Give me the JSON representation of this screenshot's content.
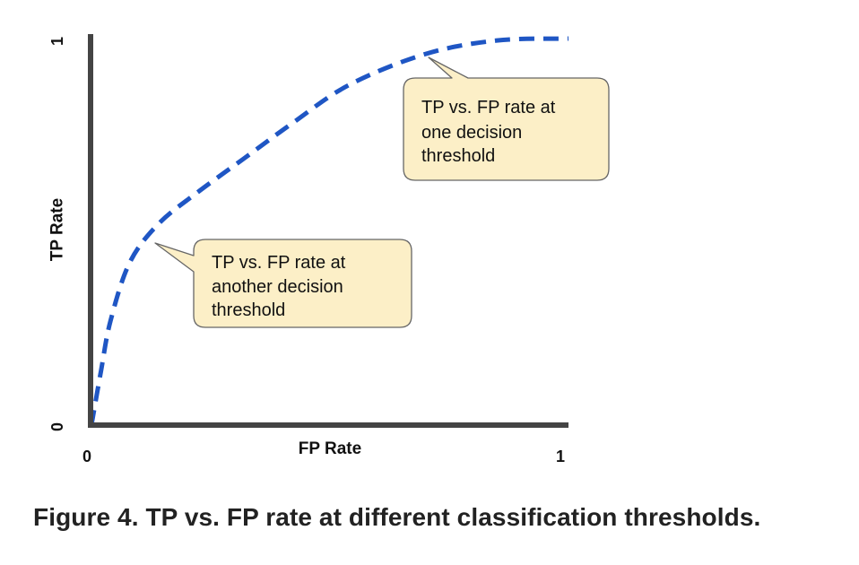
{
  "caption": "Figure 4. TP vs. FP rate at different classification thresholds.",
  "chart_data": {
    "type": "line",
    "xlabel": "FP Rate",
    "ylabel": "TP Rate",
    "xlim": [
      0,
      1
    ],
    "ylim": [
      0,
      1
    ],
    "x_ticks": [
      "0",
      "1"
    ],
    "y_ticks": [
      "0",
      "1"
    ],
    "grid": false,
    "series": [
      {
        "line_style": "dashed",
        "color": "#1f56c4",
        "points": [
          [
            0.0,
            0.0
          ],
          [
            0.02,
            0.14
          ],
          [
            0.04,
            0.27
          ],
          [
            0.08,
            0.42
          ],
          [
            0.14,
            0.52
          ],
          [
            0.22,
            0.6
          ],
          [
            0.32,
            0.69
          ],
          [
            0.42,
            0.78
          ],
          [
            0.54,
            0.88
          ],
          [
            0.7,
            0.96
          ],
          [
            0.85,
            0.995
          ],
          [
            1.0,
            1.0
          ]
        ]
      }
    ],
    "annotations": [
      {
        "text_lines": [
          "TP vs. FP rate at",
          "one decision",
          "threshold"
        ],
        "at": [
          0.71,
          0.96
        ]
      },
      {
        "text_lines": [
          "TP vs. FP rate at",
          "another decision",
          "threshold"
        ],
        "at": [
          0.14,
          0.52
        ]
      }
    ],
    "callout_fill": "#fcefc7",
    "callout_stroke": "#666666",
    "axis_color": "#444444"
  }
}
